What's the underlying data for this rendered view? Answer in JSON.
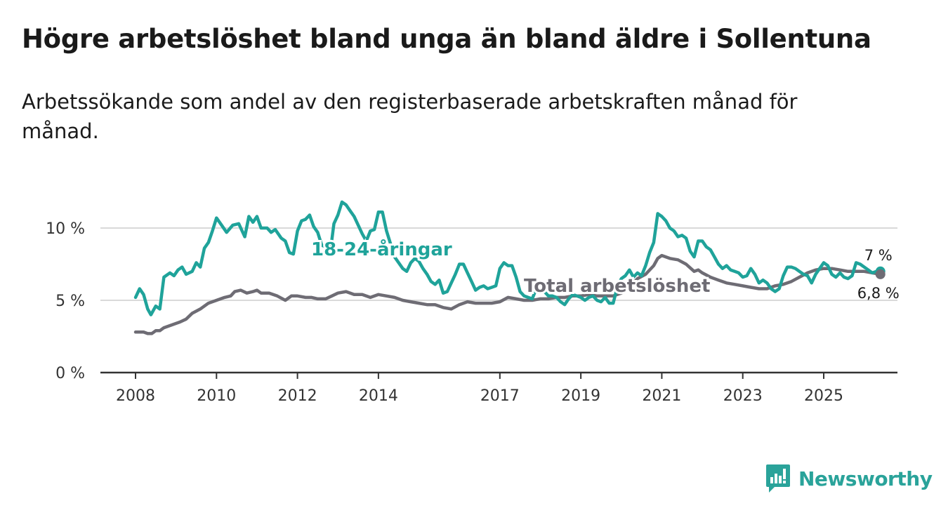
{
  "title": "Högre arbetslöshet bland unga än bland äldre i Sollentuna",
  "subtitle": "Arbetssökande som andel av den registerbaserade arbetskraften månad för månad.",
  "brand": {
    "name": "Newsworthy",
    "color": "#2aa39a"
  },
  "chart_data": {
    "type": "line",
    "title": "Högre arbetslöshet bland unga än bland äldre i Sollentuna",
    "xlabel": "",
    "ylabel": "",
    "xlim": [
      2007.55,
      2027.2
    ],
    "ylim": [
      0,
      10
    ],
    "x_ticks": [
      2008,
      2010,
      2012,
      2014,
      2017,
      2019,
      2021,
      2023,
      2025
    ],
    "y_ticks": [
      {
        "value": 0,
        "label": "0 %"
      },
      {
        "value": 5,
        "label": "5 %"
      },
      {
        "value": 10,
        "label": "10 %"
      }
    ],
    "grid": true,
    "series": [
      {
        "name": "18-24-åringar",
        "color": "#1fa39a",
        "end_label": "7 %",
        "points": [
          [
            2008.0,
            5.2
          ],
          [
            2008.1,
            5.8
          ],
          [
            2008.2,
            5.4
          ],
          [
            2008.3,
            4.4
          ],
          [
            2008.38,
            4.0
          ],
          [
            2008.5,
            4.6
          ],
          [
            2008.6,
            4.4
          ],
          [
            2008.7,
            6.6
          ],
          [
            2008.85,
            6.9
          ],
          [
            2008.95,
            6.7
          ],
          [
            2009.05,
            7.1
          ],
          [
            2009.15,
            7.3
          ],
          [
            2009.25,
            6.8
          ],
          [
            2009.4,
            7.0
          ],
          [
            2009.5,
            7.6
          ],
          [
            2009.6,
            7.3
          ],
          [
            2009.7,
            8.6
          ],
          [
            2009.8,
            9.0
          ],
          [
            2009.9,
            9.8
          ],
          [
            2010.0,
            10.7
          ],
          [
            2010.1,
            10.3
          ],
          [
            2010.25,
            9.7
          ],
          [
            2010.4,
            10.2
          ],
          [
            2010.55,
            10.3
          ],
          [
            2010.7,
            9.4
          ],
          [
            2010.8,
            10.8
          ],
          [
            2010.9,
            10.4
          ],
          [
            2011.0,
            10.8
          ],
          [
            2011.1,
            10.0
          ],
          [
            2011.25,
            10.0
          ],
          [
            2011.35,
            9.7
          ],
          [
            2011.45,
            9.9
          ],
          [
            2011.6,
            9.3
          ],
          [
            2011.7,
            9.1
          ],
          [
            2011.8,
            8.3
          ],
          [
            2011.9,
            8.2
          ],
          [
            2012.0,
            9.8
          ],
          [
            2012.1,
            10.5
          ],
          [
            2012.2,
            10.6
          ],
          [
            2012.3,
            10.9
          ],
          [
            2012.4,
            10.1
          ],
          [
            2012.5,
            9.7
          ],
          [
            2012.6,
            8.8
          ],
          [
            2012.7,
            8.7
          ],
          [
            2012.8,
            8.4
          ],
          [
            2012.85,
            9.2
          ],
          [
            2012.9,
            10.3
          ],
          [
            2013.0,
            10.9
          ],
          [
            2013.1,
            11.8
          ],
          [
            2013.2,
            11.6
          ],
          [
            2013.3,
            11.2
          ],
          [
            2013.4,
            10.8
          ],
          [
            2013.5,
            10.2
          ],
          [
            2013.6,
            9.6
          ],
          [
            2013.7,
            9.1
          ],
          [
            2013.8,
            9.8
          ],
          [
            2013.9,
            9.9
          ],
          [
            2014.0,
            11.1
          ],
          [
            2014.1,
            11.1
          ],
          [
            2014.2,
            9.8
          ],
          [
            2014.3,
            8.9
          ],
          [
            2014.4,
            8.0
          ],
          [
            2014.5,
            7.6
          ],
          [
            2014.6,
            7.2
          ],
          [
            2014.7,
            7.0
          ],
          [
            2014.8,
            7.6
          ],
          [
            2014.9,
            7.9
          ],
          [
            2015.0,
            7.7
          ],
          [
            2015.1,
            7.2
          ],
          [
            2015.2,
            6.8
          ],
          [
            2015.3,
            6.3
          ],
          [
            2015.4,
            6.1
          ],
          [
            2015.5,
            6.4
          ],
          [
            2015.6,
            5.5
          ],
          [
            2015.7,
            5.6
          ],
          [
            2015.8,
            6.2
          ],
          [
            2015.9,
            6.8
          ],
          [
            2016.0,
            7.5
          ],
          [
            2016.1,
            7.5
          ],
          [
            2016.2,
            6.9
          ],
          [
            2016.3,
            6.3
          ],
          [
            2016.4,
            5.7
          ],
          [
            2016.5,
            5.9
          ],
          [
            2016.6,
            6.0
          ],
          [
            2016.7,
            5.8
          ],
          [
            2016.8,
            5.9
          ],
          [
            2016.9,
            6.0
          ],
          [
            2017.0,
            7.2
          ],
          [
            2017.1,
            7.6
          ],
          [
            2017.2,
            7.4
          ],
          [
            2017.3,
            7.4
          ],
          [
            2017.4,
            6.6
          ],
          [
            2017.5,
            5.6
          ],
          [
            2017.6,
            5.3
          ],
          [
            2017.7,
            5.2
          ],
          [
            2017.8,
            5.1
          ],
          [
            2017.9,
            5.8
          ],
          [
            2018.0,
            6.2
          ],
          [
            2018.1,
            5.6
          ],
          [
            2018.2,
            5.3
          ],
          [
            2018.3,
            5.3
          ],
          [
            2018.4,
            5.2
          ],
          [
            2018.5,
            4.9
          ],
          [
            2018.6,
            4.7
          ],
          [
            2018.7,
            5.1
          ],
          [
            2018.8,
            5.4
          ],
          [
            2018.9,
            5.3
          ],
          [
            2019.0,
            5.2
          ],
          [
            2019.1,
            5.0
          ],
          [
            2019.2,
            5.2
          ],
          [
            2019.3,
            5.3
          ],
          [
            2019.4,
            5.0
          ],
          [
            2019.5,
            4.9
          ],
          [
            2019.6,
            5.2
          ],
          [
            2019.7,
            4.8
          ],
          [
            2019.8,
            4.8
          ],
          [
            2019.9,
            5.9
          ],
          [
            2020.0,
            6.5
          ],
          [
            2020.1,
            6.7
          ],
          [
            2020.2,
            7.1
          ],
          [
            2020.3,
            6.6
          ],
          [
            2020.4,
            6.9
          ],
          [
            2020.5,
            6.7
          ],
          [
            2020.6,
            7.4
          ],
          [
            2020.7,
            8.3
          ],
          [
            2020.8,
            9.0
          ],
          [
            2020.9,
            11.0
          ],
          [
            2021.0,
            10.8
          ],
          [
            2021.1,
            10.5
          ],
          [
            2021.2,
            10.0
          ],
          [
            2021.3,
            9.8
          ],
          [
            2021.4,
            9.4
          ],
          [
            2021.5,
            9.5
          ],
          [
            2021.6,
            9.3
          ],
          [
            2021.7,
            8.4
          ],
          [
            2021.8,
            8.0
          ],
          [
            2021.9,
            9.1
          ],
          [
            2022.0,
            9.1
          ],
          [
            2022.1,
            8.7
          ],
          [
            2022.2,
            8.5
          ],
          [
            2022.3,
            8.0
          ],
          [
            2022.4,
            7.5
          ],
          [
            2022.5,
            7.2
          ],
          [
            2022.6,
            7.4
          ],
          [
            2022.7,
            7.1
          ],
          [
            2022.8,
            7.0
          ],
          [
            2022.9,
            6.9
          ],
          [
            2023.0,
            6.6
          ],
          [
            2023.1,
            6.7
          ],
          [
            2023.2,
            7.2
          ],
          [
            2023.3,
            6.8
          ],
          [
            2023.4,
            6.2
          ],
          [
            2023.5,
            6.4
          ],
          [
            2023.6,
            6.2
          ],
          [
            2023.7,
            5.8
          ],
          [
            2023.8,
            5.6
          ],
          [
            2023.9,
            5.8
          ],
          [
            2024.0,
            6.7
          ],
          [
            2024.1,
            7.3
          ],
          [
            2024.2,
            7.3
          ],
          [
            2024.3,
            7.2
          ],
          [
            2024.4,
            7.0
          ],
          [
            2024.5,
            6.8
          ],
          [
            2024.6,
            6.7
          ],
          [
            2024.7,
            6.2
          ],
          [
            2024.8,
            6.8
          ],
          [
            2024.9,
            7.2
          ],
          [
            2025.0,
            7.6
          ],
          [
            2025.1,
            7.4
          ],
          [
            2025.2,
            6.8
          ],
          [
            2025.3,
            6.6
          ],
          [
            2025.4,
            6.9
          ],
          [
            2025.5,
            6.6
          ],
          [
            2025.6,
            6.5
          ],
          [
            2025.7,
            6.7
          ],
          [
            2025.8,
            7.6
          ],
          [
            2025.9,
            7.5
          ],
          [
            2026.0,
            7.3
          ],
          [
            2026.1,
            7.1
          ],
          [
            2026.2,
            6.9
          ],
          [
            2026.3,
            7.0
          ],
          [
            2026.4,
            7.0
          ]
        ]
      },
      {
        "name": "Total arbetslöshet",
        "color": "#6e6c74",
        "end_label": "6,8 %",
        "points": [
          [
            2008.0,
            2.8
          ],
          [
            2008.2,
            2.8
          ],
          [
            2008.3,
            2.7
          ],
          [
            2008.4,
            2.7
          ],
          [
            2008.5,
            2.9
          ],
          [
            2008.6,
            2.9
          ],
          [
            2008.7,
            3.1
          ],
          [
            2008.9,
            3.3
          ],
          [
            2009.1,
            3.5
          ],
          [
            2009.25,
            3.7
          ],
          [
            2009.4,
            4.1
          ],
          [
            2009.6,
            4.4
          ],
          [
            2009.8,
            4.8
          ],
          [
            2010.0,
            5.0
          ],
          [
            2010.2,
            5.2
          ],
          [
            2010.35,
            5.3
          ],
          [
            2010.45,
            5.6
          ],
          [
            2010.6,
            5.7
          ],
          [
            2010.75,
            5.5
          ],
          [
            2010.9,
            5.6
          ],
          [
            2011.0,
            5.7
          ],
          [
            2011.1,
            5.5
          ],
          [
            2011.3,
            5.5
          ],
          [
            2011.5,
            5.3
          ],
          [
            2011.7,
            5.0
          ],
          [
            2011.85,
            5.3
          ],
          [
            2012.0,
            5.3
          ],
          [
            2012.2,
            5.2
          ],
          [
            2012.35,
            5.2
          ],
          [
            2012.5,
            5.1
          ],
          [
            2012.7,
            5.1
          ],
          [
            2012.85,
            5.3
          ],
          [
            2013.0,
            5.5
          ],
          [
            2013.2,
            5.6
          ],
          [
            2013.4,
            5.4
          ],
          [
            2013.6,
            5.4
          ],
          [
            2013.8,
            5.2
          ],
          [
            2014.0,
            5.4
          ],
          [
            2014.2,
            5.3
          ],
          [
            2014.4,
            5.2
          ],
          [
            2014.6,
            5.0
          ],
          [
            2014.8,
            4.9
          ],
          [
            2015.0,
            4.8
          ],
          [
            2015.2,
            4.7
          ],
          [
            2015.4,
            4.7
          ],
          [
            2015.6,
            4.5
          ],
          [
            2015.8,
            4.4
          ],
          [
            2016.0,
            4.7
          ],
          [
            2016.2,
            4.9
          ],
          [
            2016.4,
            4.8
          ],
          [
            2016.6,
            4.8
          ],
          [
            2016.8,
            4.8
          ],
          [
            2017.0,
            4.9
          ],
          [
            2017.2,
            5.2
          ],
          [
            2017.4,
            5.1
          ],
          [
            2017.6,
            5.0
          ],
          [
            2017.8,
            5.0
          ],
          [
            2018.0,
            5.1
          ],
          [
            2018.2,
            5.1
          ],
          [
            2018.4,
            5.2
          ],
          [
            2018.6,
            5.2
          ],
          [
            2018.8,
            5.3
          ],
          [
            2019.0,
            5.3
          ],
          [
            2019.2,
            5.4
          ],
          [
            2019.4,
            5.3
          ],
          [
            2019.6,
            5.3
          ],
          [
            2019.8,
            5.3
          ],
          [
            2020.0,
            5.5
          ],
          [
            2020.2,
            5.9
          ],
          [
            2020.4,
            6.5
          ],
          [
            2020.6,
            6.8
          ],
          [
            2020.8,
            7.4
          ],
          [
            2020.9,
            7.9
          ],
          [
            2021.0,
            8.1
          ],
          [
            2021.2,
            7.9
          ],
          [
            2021.4,
            7.8
          ],
          [
            2021.6,
            7.5
          ],
          [
            2021.8,
            7.0
          ],
          [
            2021.9,
            7.1
          ],
          [
            2022.0,
            6.9
          ],
          [
            2022.2,
            6.6
          ],
          [
            2022.4,
            6.4
          ],
          [
            2022.6,
            6.2
          ],
          [
            2022.8,
            6.1
          ],
          [
            2023.0,
            6.0
          ],
          [
            2023.2,
            5.9
          ],
          [
            2023.4,
            5.8
          ],
          [
            2023.6,
            5.8
          ],
          [
            2023.8,
            6.0
          ],
          [
            2024.0,
            6.1
          ],
          [
            2024.2,
            6.3
          ],
          [
            2024.4,
            6.6
          ],
          [
            2024.6,
            6.9
          ],
          [
            2024.8,
            7.1
          ],
          [
            2025.0,
            7.2
          ],
          [
            2025.2,
            7.2
          ],
          [
            2025.4,
            7.1
          ],
          [
            2025.6,
            7.0
          ],
          [
            2025.8,
            7.0
          ],
          [
            2026.0,
            7.0
          ],
          [
            2026.2,
            6.9
          ],
          [
            2026.4,
            6.8
          ]
        ]
      }
    ]
  }
}
